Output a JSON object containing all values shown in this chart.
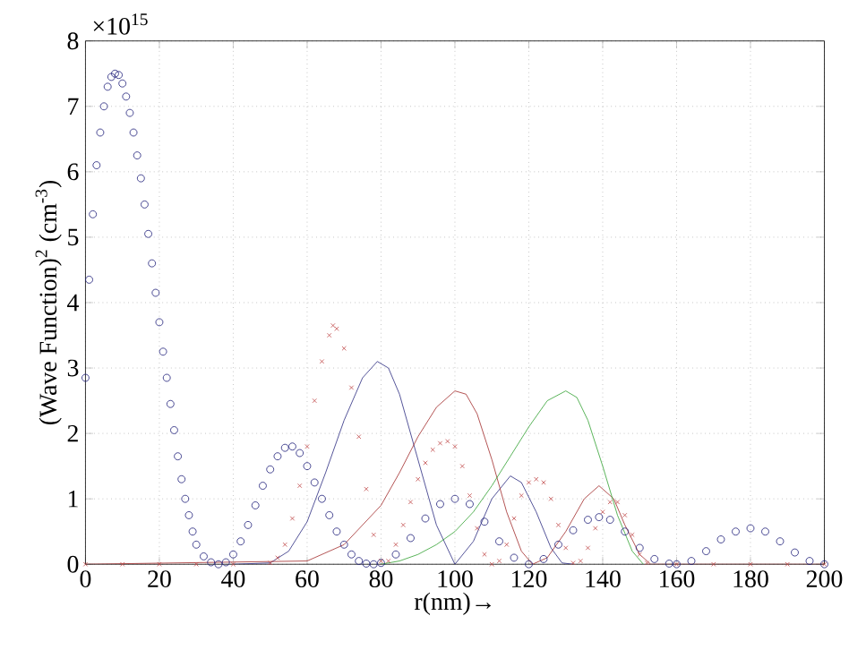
{
  "chart_data": {
    "type": "line",
    "xlabel": "r(nm)→",
    "ylabel": "(Wave Function)$^{2}$ (cm$^{-3}$)",
    "annotations": [
      "×10$^{15}$"
    ],
    "xlim": [
      0,
      200
    ],
    "xticks": [
      0,
      20,
      40,
      60,
      80,
      100,
      120,
      140,
      160,
      180,
      200
    ],
    "ylim": [
      0,
      8
    ],
    "yticks": [
      0,
      1,
      2,
      3,
      4,
      5,
      6,
      7,
      8
    ],
    "grid": true,
    "series": [
      {
        "type": "scatter",
        "marker": "circle",
        "color": "#1c1c78",
        "x": [
          0,
          1,
          2,
          3,
          4,
          5,
          6,
          7,
          8,
          9,
          10,
          11,
          12,
          13,
          14,
          15,
          16,
          17,
          18,
          19,
          20,
          21,
          22,
          23,
          24,
          25,
          26,
          27,
          28,
          29,
          30,
          32,
          34,
          36,
          38,
          40,
          42,
          44,
          46,
          48,
          50,
          52,
          54,
          56,
          58,
          60,
          62,
          64,
          66,
          68,
          70,
          72,
          74,
          76,
          78,
          80,
          84,
          88,
          92,
          96,
          100,
          104,
          108,
          112,
          116,
          120,
          124,
          128,
          132,
          136,
          139,
          142,
          146,
          150,
          154,
          158,
          160,
          164,
          168,
          172,
          176,
          180,
          184,
          188,
          192,
          196,
          200
        ],
        "values": [
          2.85,
          4.35,
          5.35,
          6.1,
          6.6,
          7.0,
          7.3,
          7.45,
          7.5,
          7.48,
          7.35,
          7.15,
          6.9,
          6.6,
          6.25,
          5.9,
          5.5,
          5.05,
          4.6,
          4.15,
          3.7,
          3.25,
          2.85,
          2.45,
          2.05,
          1.65,
          1.3,
          1.0,
          0.75,
          0.5,
          0.3,
          0.12,
          0.03,
          0,
          0.03,
          0.15,
          0.35,
          0.6,
          0.9,
          1.2,
          1.45,
          1.65,
          1.78,
          1.8,
          1.7,
          1.5,
          1.25,
          1.0,
          0.75,
          0.5,
          0.3,
          0.15,
          0.05,
          0.01,
          0,
          0.02,
          0.15,
          0.4,
          0.7,
          0.92,
          1.0,
          0.92,
          0.65,
          0.35,
          0.1,
          0,
          0.08,
          0.3,
          0.52,
          0.68,
          0.72,
          0.68,
          0.5,
          0.25,
          0.08,
          0.01,
          0,
          0.05,
          0.2,
          0.38,
          0.5,
          0.55,
          0.5,
          0.35,
          0.18,
          0.05,
          0
        ]
      },
      {
        "type": "scatter",
        "marker": "cross",
        "color": "#c04848",
        "x": [
          0,
          10,
          20,
          30,
          40,
          50,
          52,
          54,
          56,
          58,
          60,
          62,
          64,
          66,
          67,
          68,
          70,
          72,
          74,
          76,
          78,
          80,
          82,
          84,
          86,
          88,
          90,
          92,
          94,
          96,
          98,
          100,
          102,
          104,
          106,
          108,
          110,
          112,
          114,
          116,
          118,
          120,
          122,
          124,
          126,
          128,
          130,
          132,
          134,
          136,
          138,
          140,
          142,
          144,
          146,
          148,
          150,
          152,
          160,
          170,
          180,
          190,
          200
        ],
        "values": [
          0,
          0,
          0,
          0,
          0,
          0.02,
          0.1,
          0.3,
          0.7,
          1.2,
          1.8,
          2.5,
          3.1,
          3.5,
          3.65,
          3.6,
          3.3,
          2.7,
          1.95,
          1.15,
          0.45,
          0.05,
          0.05,
          0.3,
          0.6,
          0.95,
          1.3,
          1.55,
          1.75,
          1.85,
          1.88,
          1.8,
          1.5,
          1.05,
          0.55,
          0.15,
          0,
          0.05,
          0.3,
          0.7,
          1.05,
          1.25,
          1.3,
          1.25,
          1.0,
          0.6,
          0.25,
          0.02,
          0.05,
          0.25,
          0.55,
          0.8,
          0.95,
          0.95,
          0.75,
          0.45,
          0.15,
          0.02,
          0,
          0,
          0,
          0,
          0
        ]
      },
      {
        "color": "#2a2a80",
        "x": [
          40,
          50,
          55,
          60,
          65,
          70,
          75,
          79,
          82,
          85,
          90,
          95,
          100,
          105,
          110,
          115,
          118,
          122,
          126,
          129,
          132
        ],
        "values": [
          0,
          0.02,
          0.2,
          0.65,
          1.4,
          2.2,
          2.85,
          3.1,
          3.0,
          2.6,
          1.6,
          0.6,
          0,
          0.35,
          1.0,
          1.35,
          1.25,
          0.8,
          0.25,
          0.02,
          0
        ]
      },
      {
        "color": "#a02828",
        "x": [
          0,
          60,
          70,
          80,
          85,
          90,
          95,
          100,
          103,
          106,
          110,
          114,
          118,
          121,
          125,
          130,
          135,
          139,
          143,
          146,
          150,
          153,
          200
        ],
        "values": [
          0,
          0.05,
          0.3,
          0.9,
          1.4,
          1.95,
          2.4,
          2.65,
          2.6,
          2.3,
          1.6,
          0.8,
          0.2,
          0,
          0.1,
          0.5,
          1.0,
          1.2,
          1.0,
          0.6,
          0.15,
          0,
          0
        ]
      },
      {
        "color": "#30a030",
        "x": [
          80,
          85,
          90,
          95,
          100,
          105,
          110,
          115,
          120,
          125,
          130,
          133,
          136,
          140,
          144,
          148,
          151
        ],
        "values": [
          0,
          0.05,
          0.15,
          0.3,
          0.5,
          0.8,
          1.2,
          1.65,
          2.1,
          2.5,
          2.65,
          2.55,
          2.2,
          1.5,
          0.75,
          0.2,
          0
        ]
      }
    ]
  }
}
